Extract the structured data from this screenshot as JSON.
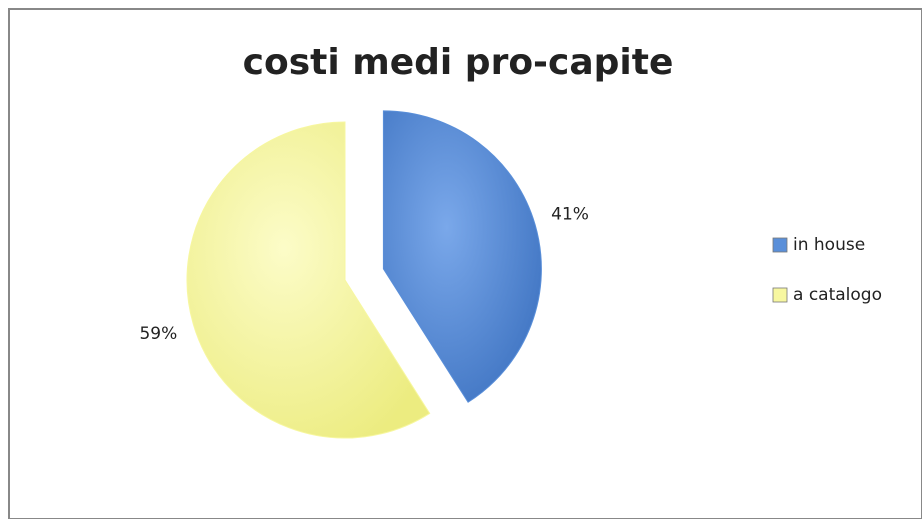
{
  "chart_data": {
    "type": "pie",
    "title": "costi medi pro-capite",
    "categories": [
      "in house",
      "a catalogo"
    ],
    "values": [
      41,
      59
    ],
    "value_labels": [
      "41%",
      "59%"
    ],
    "colors": [
      "#5a8fd9",
      "#f7f7a0"
    ],
    "legend": "right"
  }
}
